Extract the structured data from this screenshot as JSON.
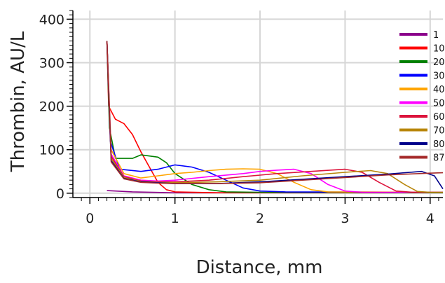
{
  "chart_data": {
    "type": "line",
    "title": "",
    "xlabel": "Distance, mm",
    "ylabel": "Thrombin, AU/L",
    "xlim": [
      -0.2,
      4.15
    ],
    "ylim": [
      -10,
      420
    ],
    "x_ticks": [
      "0",
      "1",
      "2",
      "3",
      "4"
    ],
    "y_ticks": [
      "0",
      "100",
      "200",
      "300",
      "400"
    ],
    "grid": true,
    "legend_position": "right",
    "series": [
      {
        "name": "1",
        "color": "#8b008b",
        "points": [
          [
            0.2,
            6
          ],
          [
            0.5,
            3
          ],
          [
            1.0,
            1
          ],
          [
            1.5,
            1
          ],
          [
            2.0,
            1
          ],
          [
            3.0,
            1
          ],
          [
            4.15,
            1
          ]
        ]
      },
      {
        "name": "10",
        "color": "#ff0000",
        "points": [
          [
            0.2,
            350
          ],
          [
            0.22,
            200
          ],
          [
            0.3,
            170
          ],
          [
            0.4,
            160
          ],
          [
            0.5,
            135
          ],
          [
            0.6,
            95
          ],
          [
            0.7,
            60
          ],
          [
            0.8,
            25
          ],
          [
            0.9,
            8
          ],
          [
            1.0,
            3
          ],
          [
            1.5,
            1
          ],
          [
            4.15,
            1
          ]
        ]
      },
      {
        "name": "20",
        "color": "#008000",
        "points": [
          [
            0.2,
            350
          ],
          [
            0.23,
            150
          ],
          [
            0.3,
            80
          ],
          [
            0.5,
            80
          ],
          [
            0.6,
            88
          ],
          [
            0.8,
            83
          ],
          [
            0.9,
            70
          ],
          [
            1.0,
            45
          ],
          [
            1.2,
            20
          ],
          [
            1.4,
            8
          ],
          [
            1.6,
            3
          ],
          [
            2.0,
            2
          ],
          [
            4.15,
            1
          ]
        ]
      },
      {
        "name": "30",
        "color": "#0000ff",
        "points": [
          [
            0.2,
            350
          ],
          [
            0.24,
            120
          ],
          [
            0.35,
            55
          ],
          [
            0.6,
            50
          ],
          [
            0.8,
            55
          ],
          [
            1.0,
            65
          ],
          [
            1.2,
            60
          ],
          [
            1.4,
            48
          ],
          [
            1.6,
            30
          ],
          [
            1.8,
            12
          ],
          [
            2.0,
            5
          ],
          [
            2.3,
            3
          ],
          [
            4.15,
            2
          ]
        ]
      },
      {
        "name": "40",
        "color": "#ffa500",
        "points": [
          [
            0.2,
            350
          ],
          [
            0.25,
            100
          ],
          [
            0.4,
            45
          ],
          [
            0.6,
            35
          ],
          [
            0.8,
            40
          ],
          [
            1.0,
            45
          ],
          [
            1.2,
            48
          ],
          [
            1.4,
            52
          ],
          [
            1.6,
            55
          ],
          [
            1.8,
            56
          ],
          [
            2.0,
            55
          ],
          [
            2.2,
            45
          ],
          [
            2.4,
            25
          ],
          [
            2.6,
            8
          ],
          [
            2.8,
            3
          ],
          [
            4.15,
            2
          ]
        ]
      },
      {
        "name": "50",
        "color": "#ff00ff",
        "points": [
          [
            0.2,
            350
          ],
          [
            0.25,
            90
          ],
          [
            0.4,
            40
          ],
          [
            0.6,
            30
          ],
          [
            0.8,
            28
          ],
          [
            1.0,
            30
          ],
          [
            1.4,
            38
          ],
          [
            1.8,
            45
          ],
          [
            2.0,
            50
          ],
          [
            2.2,
            53
          ],
          [
            2.4,
            55
          ],
          [
            2.6,
            45
          ],
          [
            2.8,
            20
          ],
          [
            3.0,
            5
          ],
          [
            3.2,
            2
          ],
          [
            4.15,
            2
          ]
        ]
      },
      {
        "name": "60",
        "color": "#dc143c",
        "points": [
          [
            0.2,
            350
          ],
          [
            0.25,
            85
          ],
          [
            0.4,
            38
          ],
          [
            0.6,
            28
          ],
          [
            0.8,
            26
          ],
          [
            1.0,
            26
          ],
          [
            1.4,
            30
          ],
          [
            1.8,
            38
          ],
          [
            2.2,
            45
          ],
          [
            2.6,
            50
          ],
          [
            3.0,
            55
          ],
          [
            3.2,
            48
          ],
          [
            3.4,
            25
          ],
          [
            3.6,
            5
          ],
          [
            3.8,
            2
          ],
          [
            4.15,
            2
          ]
        ]
      },
      {
        "name": "70",
        "color": "#b8860b",
        "points": [
          [
            0.2,
            350
          ],
          [
            0.25,
            80
          ],
          [
            0.4,
            36
          ],
          [
            0.6,
            27
          ],
          [
            0.8,
            25
          ],
          [
            1.0,
            24
          ],
          [
            1.5,
            26
          ],
          [
            2.0,
            30
          ],
          [
            2.5,
            40
          ],
          [
            3.0,
            48
          ],
          [
            3.3,
            52
          ],
          [
            3.5,
            45
          ],
          [
            3.7,
            20
          ],
          [
            3.85,
            4
          ],
          [
            4.0,
            2
          ],
          [
            4.15,
            2
          ]
        ]
      },
      {
        "name": "80",
        "color": "#00008b",
        "points": [
          [
            0.2,
            350
          ],
          [
            0.25,
            75
          ],
          [
            0.4,
            34
          ],
          [
            0.6,
            26
          ],
          [
            0.8,
            24
          ],
          [
            1.0,
            22
          ],
          [
            1.5,
            22
          ],
          [
            2.0,
            26
          ],
          [
            2.5,
            32
          ],
          [
            3.0,
            38
          ],
          [
            3.5,
            44
          ],
          [
            3.9,
            50
          ],
          [
            4.05,
            40
          ],
          [
            4.15,
            10
          ]
        ]
      },
      {
        "name": "87",
        "color": "#a52a2a",
        "points": [
          [
            0.2,
            350
          ],
          [
            0.25,
            72
          ],
          [
            0.4,
            33
          ],
          [
            0.6,
            25
          ],
          [
            0.8,
            23
          ],
          [
            1.0,
            22
          ],
          [
            1.5,
            22
          ],
          [
            2.0,
            24
          ],
          [
            2.5,
            30
          ],
          [
            3.0,
            36
          ],
          [
            3.5,
            42
          ],
          [
            4.0,
            46
          ],
          [
            4.15,
            47
          ]
        ]
      }
    ]
  }
}
